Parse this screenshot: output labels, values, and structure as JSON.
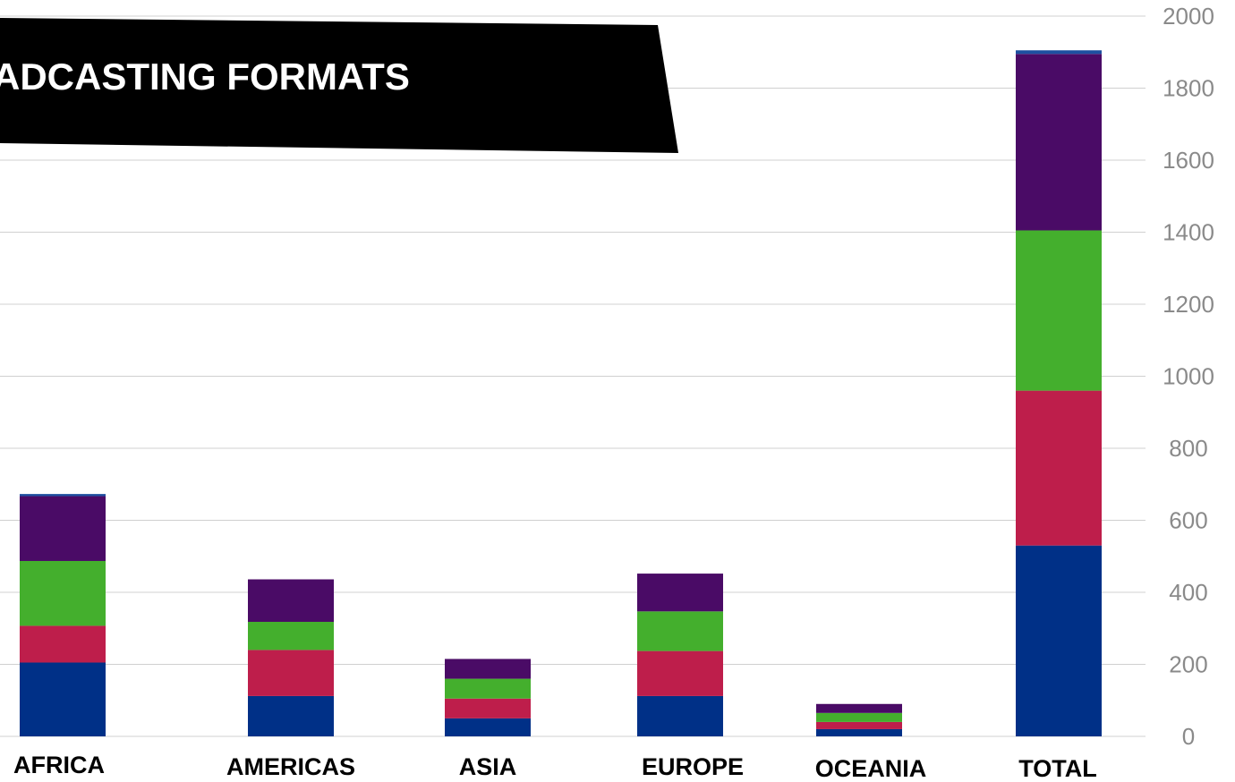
{
  "chart_data": {
    "type": "bar",
    "stacked": true,
    "title": "ADCASTING FORMATS",
    "categories": [
      "AFRICA",
      "AMERICAS",
      "ASIA",
      "EUROPE",
      "OCEANIA",
      "TOTAL"
    ],
    "series": [
      {
        "color": "#003087",
        "values": [
          205,
          112,
          50,
          112,
          20,
          530
        ]
      },
      {
        "color": "#be1e4b",
        "values": [
          102,
          128,
          55,
          125,
          20,
          430
        ]
      },
      {
        "color": "#44af2d",
        "values": [
          180,
          78,
          55,
          110,
          25,
          445
        ]
      },
      {
        "color": "#4a0b66",
        "values": [
          180,
          118,
          55,
          105,
          25,
          490
        ]
      },
      {
        "color": "#1d4fa0",
        "values": [
          6,
          0,
          0,
          0,
          0,
          10
        ]
      }
    ],
    "ylim": [
      0,
      2000
    ],
    "yticks": [
      0,
      200,
      400,
      600,
      800,
      1000,
      1200,
      1400,
      1600,
      1800,
      2000
    ],
    "y_axis_position": "right",
    "grid": true,
    "legend": "none"
  }
}
